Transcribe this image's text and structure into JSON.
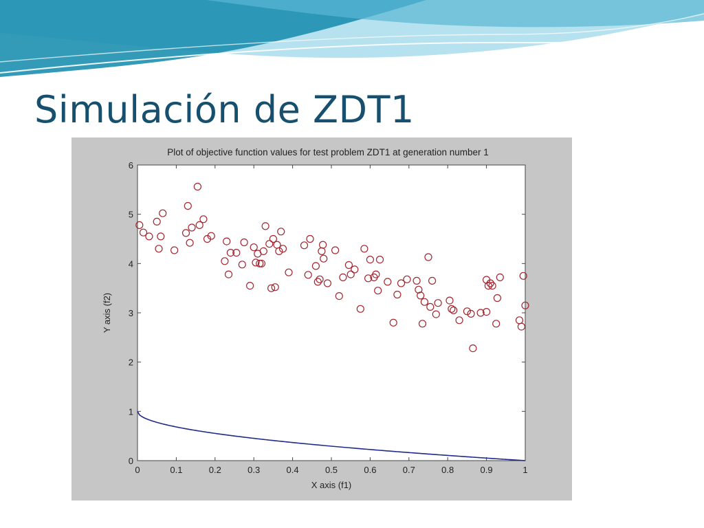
{
  "slide": {
    "title": "Simulación de ZDT1"
  },
  "colors": {
    "title": "#16506e",
    "banner_dark": "#1d8fb0",
    "banner_light": "#a9dceb",
    "figure_background": "#c6c6c6",
    "axes_background": "#ffffff",
    "points": "#a3262f",
    "front_line": "#1f2a8a"
  },
  "chart_data": {
    "type": "scatter",
    "title": "Plot of objective function values for test problem ZDT1 at generation number 1",
    "xlabel": "X axis (f1)",
    "ylabel": "Y axis (f2)",
    "xlim": [
      0,
      1
    ],
    "ylim": [
      0,
      6
    ],
    "xticks": [
      "0",
      "0.1",
      "0.2",
      "0.3",
      "0.4",
      "0.5",
      "0.6",
      "0.7",
      "0.8",
      "0.9",
      "1"
    ],
    "yticks": [
      "0",
      "1",
      "2",
      "3",
      "4",
      "5",
      "6"
    ],
    "grid": false,
    "legend": "none",
    "series": [
      {
        "marker": "open-circle",
        "points": [
          [
            0.005,
            4.78
          ],
          [
            0.015,
            4.63
          ],
          [
            0.03,
            4.55
          ],
          [
            0.05,
            4.85
          ],
          [
            0.055,
            4.3
          ],
          [
            0.06,
            4.55
          ],
          [
            0.065,
            5.02
          ],
          [
            0.095,
            4.27
          ],
          [
            0.125,
            4.62
          ],
          [
            0.13,
            5.17
          ],
          [
            0.135,
            4.42
          ],
          [
            0.14,
            4.73
          ],
          [
            0.155,
            5.56
          ],
          [
            0.16,
            4.78
          ],
          [
            0.17,
            4.9
          ],
          [
            0.18,
            4.5
          ],
          [
            0.19,
            4.56
          ],
          [
            0.225,
            4.05
          ],
          [
            0.23,
            4.45
          ],
          [
            0.235,
            3.78
          ],
          [
            0.24,
            4.22
          ],
          [
            0.255,
            4.22
          ],
          [
            0.27,
            3.98
          ],
          [
            0.275,
            4.43
          ],
          [
            0.29,
            3.55
          ],
          [
            0.3,
            4.33
          ],
          [
            0.305,
            4.02
          ],
          [
            0.31,
            4.2
          ],
          [
            0.315,
            4.0
          ],
          [
            0.32,
            4.0
          ],
          [
            0.325,
            4.25
          ],
          [
            0.33,
            4.76
          ],
          [
            0.34,
            4.4
          ],
          [
            0.345,
            3.5
          ],
          [
            0.35,
            4.5
          ],
          [
            0.355,
            3.52
          ],
          [
            0.36,
            4.38
          ],
          [
            0.365,
            4.25
          ],
          [
            0.37,
            4.65
          ],
          [
            0.375,
            4.3
          ],
          [
            0.39,
            3.82
          ],
          [
            0.43,
            4.37
          ],
          [
            0.44,
            3.77
          ],
          [
            0.445,
            4.5
          ],
          [
            0.46,
            3.95
          ],
          [
            0.465,
            3.63
          ],
          [
            0.47,
            3.68
          ],
          [
            0.475,
            4.25
          ],
          [
            0.478,
            4.38
          ],
          [
            0.48,
            4.1
          ],
          [
            0.49,
            3.6
          ],
          [
            0.51,
            4.27
          ],
          [
            0.52,
            3.34
          ],
          [
            0.53,
            3.72
          ],
          [
            0.545,
            3.97
          ],
          [
            0.55,
            3.78
          ],
          [
            0.56,
            3.88
          ],
          [
            0.575,
            3.08
          ],
          [
            0.585,
            4.3
          ],
          [
            0.595,
            3.7
          ],
          [
            0.6,
            4.08
          ],
          [
            0.61,
            3.72
          ],
          [
            0.615,
            3.78
          ],
          [
            0.62,
            3.45
          ],
          [
            0.625,
            4.08
          ],
          [
            0.645,
            3.63
          ],
          [
            0.66,
            2.8
          ],
          [
            0.67,
            3.37
          ],
          [
            0.68,
            3.6
          ],
          [
            0.695,
            3.68
          ],
          [
            0.72,
            3.65
          ],
          [
            0.725,
            3.47
          ],
          [
            0.73,
            3.35
          ],
          [
            0.735,
            2.78
          ],
          [
            0.74,
            3.22
          ],
          [
            0.75,
            4.13
          ],
          [
            0.755,
            3.12
          ],
          [
            0.76,
            3.65
          ],
          [
            0.77,
            2.97
          ],
          [
            0.775,
            3.2
          ],
          [
            0.805,
            3.25
          ],
          [
            0.81,
            3.08
          ],
          [
            0.815,
            3.05
          ],
          [
            0.83,
            2.85
          ],
          [
            0.85,
            3.03
          ],
          [
            0.86,
            2.98
          ],
          [
            0.865,
            2.28
          ],
          [
            0.885,
            3.0
          ],
          [
            0.9,
            3.02
          ],
          [
            0.9,
            3.67
          ],
          [
            0.905,
            3.55
          ],
          [
            0.91,
            3.6
          ],
          [
            0.915,
            3.55
          ],
          [
            0.925,
            2.78
          ],
          [
            0.928,
            3.3
          ],
          [
            0.935,
            3.72
          ],
          [
            0.985,
            2.85
          ],
          [
            0.99,
            2.72
          ],
          [
            0.995,
            3.75
          ],
          [
            1.0,
            3.15
          ]
        ]
      },
      {
        "marker": "line",
        "function": "f2 = 1 - sqrt(f1)"
      }
    ]
  }
}
